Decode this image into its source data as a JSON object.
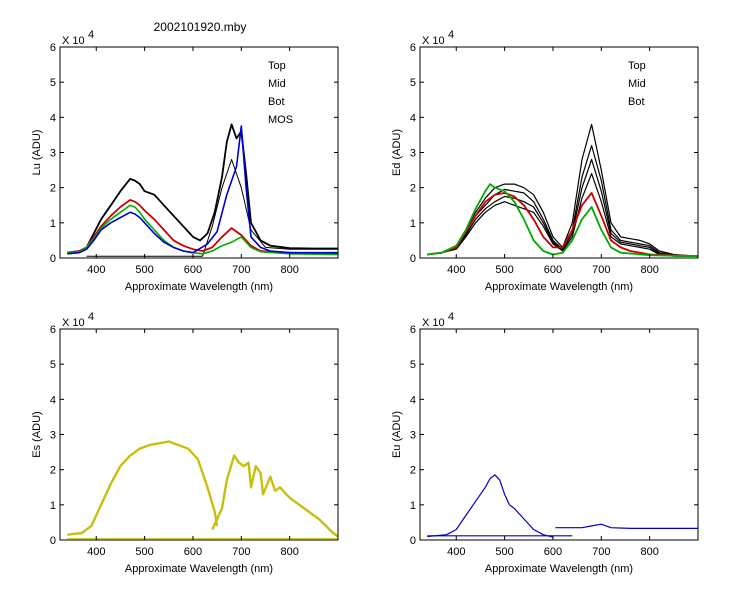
{
  "figure": {
    "title": "2002101920.mby"
  },
  "chart_data": [
    {
      "type": "line",
      "id": "lu",
      "ylabel": "Lu (ADU)",
      "xlabel": "Approximate Wavelength (nm)",
      "multiplier_label": "X 10",
      "multiplier_exp": "4",
      "xlim": [
        325,
        900
      ],
      "ylim": [
        0,
        6
      ],
      "xticks": [
        400,
        500,
        600,
        700,
        800
      ],
      "yticks": [
        0,
        1,
        2,
        3,
        4,
        5,
        6
      ],
      "legend_position": "top-right",
      "legend": [
        {
          "name": "Top",
          "color": "#000000"
        },
        {
          "name": "Mid",
          "color": "#cc0000"
        },
        {
          "name": "Bot",
          "color": "#00aa00"
        },
        {
          "name": "MOS",
          "color": "#0000cc"
        }
      ],
      "series": [
        {
          "name": "Top",
          "color": "#000000",
          "width": 1.8,
          "x": [
            340,
            365,
            380,
            395,
            410,
            430,
            450,
            470,
            480,
            490,
            500,
            520,
            540,
            560,
            580,
            600,
            615,
            630,
            645,
            660,
            670,
            680,
            690,
            700,
            710,
            720,
            740,
            760,
            800,
            850,
            900
          ],
          "y": [
            0.15,
            0.2,
            0.3,
            0.7,
            1.1,
            1.5,
            1.9,
            2.25,
            2.2,
            2.1,
            1.9,
            1.8,
            1.5,
            1.2,
            0.9,
            0.6,
            0.5,
            0.7,
            1.3,
            2.3,
            3.3,
            3.8,
            3.4,
            3.6,
            2.4,
            1.0,
            0.5,
            0.35,
            0.28,
            0.27,
            0.27
          ]
        },
        {
          "name": "Top-low",
          "color": "#000000",
          "width": 1,
          "x": [
            620,
            640,
            660,
            680,
            700,
            720,
            750,
            800,
            900
          ],
          "y": [
            0.05,
            0.9,
            2.0,
            2.8,
            2.0,
            0.8,
            0.3,
            0.25,
            0.25
          ]
        },
        {
          "name": "Mid",
          "color": "#cc0000",
          "width": 1.8,
          "x": [
            340,
            365,
            380,
            395,
            410,
            430,
            450,
            470,
            480,
            490,
            500,
            520,
            540,
            560,
            580,
            600,
            620,
            640,
            660,
            680,
            700,
            720,
            740,
            800,
            900
          ],
          "y": [
            0.15,
            0.2,
            0.3,
            0.6,
            0.9,
            1.2,
            1.45,
            1.65,
            1.6,
            1.5,
            1.35,
            1.1,
            0.8,
            0.5,
            0.35,
            0.25,
            0.2,
            0.3,
            0.6,
            0.85,
            0.65,
            0.35,
            0.2,
            0.15,
            0.12
          ]
        },
        {
          "name": "Bot",
          "color": "#00aa00",
          "width": 1.6,
          "x": [
            340,
            365,
            380,
            395,
            410,
            430,
            450,
            470,
            480,
            490,
            500,
            520,
            540,
            560,
            580,
            600,
            620,
            640,
            660,
            680,
            700,
            720,
            740,
            800,
            900
          ],
          "y": [
            0.15,
            0.18,
            0.3,
            0.55,
            0.85,
            1.1,
            1.3,
            1.5,
            1.45,
            1.3,
            1.1,
            0.8,
            0.5,
            0.3,
            0.2,
            0.15,
            0.12,
            0.2,
            0.35,
            0.45,
            0.6,
            0.3,
            0.18,
            0.12,
            0.1
          ]
        },
        {
          "name": "MOS",
          "color": "#0000cc",
          "width": 1.6,
          "x": [
            340,
            365,
            380,
            395,
            410,
            430,
            450,
            470,
            480,
            490,
            500,
            520,
            540,
            560,
            580,
            600,
            630,
            650,
            670,
            690,
            700,
            710,
            720,
            740,
            760,
            800,
            900
          ],
          "y": [
            0.12,
            0.15,
            0.25,
            0.5,
            0.8,
            1.0,
            1.15,
            1.3,
            1.25,
            1.15,
            1.0,
            0.7,
            0.45,
            0.3,
            0.2,
            0.15,
            0.4,
            0.75,
            1.8,
            2.6,
            3.75,
            2.0,
            0.6,
            0.3,
            0.2,
            0.15,
            0.15
          ]
        },
        {
          "name": "Baseline",
          "color": "#000000",
          "width": 1,
          "x": [
            380,
            620
          ],
          "y": [
            0.05,
            0.05
          ]
        }
      ]
    },
    {
      "type": "line",
      "id": "ed",
      "ylabel": "Ed (ADU)",
      "xlabel": "Approximate Wavelength (nm)",
      "multiplier_label": "X 10",
      "multiplier_exp": "4",
      "xlim": [
        325,
        900
      ],
      "ylim": [
        0,
        6
      ],
      "xticks": [
        400,
        500,
        600,
        700,
        800
      ],
      "yticks": [
        0,
        1,
        2,
        3,
        4,
        5,
        6
      ],
      "legend_position": "top-right",
      "legend": [
        {
          "name": "Top",
          "color": "#000000"
        },
        {
          "name": "Mid",
          "color": "#cc0000"
        },
        {
          "name": "Bot",
          "color": "#00aa00"
        }
      ],
      "series": [
        {
          "name": "Top-1",
          "color": "#000000",
          "width": 1.2,
          "x": [
            340,
            370,
            400,
            420,
            440,
            460,
            480,
            500,
            520,
            540,
            560,
            580,
            600,
            620,
            640,
            660,
            680,
            700,
            720,
            740,
            760,
            780,
            800,
            820,
            850,
            900
          ],
          "y": [
            0.1,
            0.15,
            0.3,
            0.8,
            1.3,
            1.7,
            2.0,
            2.1,
            2.1,
            2.0,
            1.8,
            1.3,
            0.6,
            0.3,
            1.0,
            2.8,
            3.8,
            2.5,
            1.0,
            0.6,
            0.55,
            0.5,
            0.4,
            0.2,
            0.1,
            0.05
          ]
        },
        {
          "name": "Top-2",
          "color": "#000000",
          "width": 1.2,
          "x": [
            340,
            370,
            400,
            420,
            440,
            460,
            480,
            500,
            520,
            540,
            560,
            580,
            600,
            620,
            640,
            660,
            680,
            700,
            720,
            740,
            760,
            780,
            800,
            820,
            850,
            900
          ],
          "y": [
            0.1,
            0.15,
            0.3,
            0.7,
            1.2,
            1.5,
            1.8,
            1.95,
            1.9,
            1.85,
            1.6,
            1.1,
            0.5,
            0.25,
            0.8,
            2.3,
            3.2,
            2.2,
            0.8,
            0.5,
            0.45,
            0.4,
            0.35,
            0.15,
            0.08,
            0.05
          ]
        },
        {
          "name": "Top-3",
          "color": "#000000",
          "width": 1.2,
          "x": [
            340,
            370,
            400,
            420,
            440,
            460,
            480,
            500,
            520,
            540,
            560,
            580,
            600,
            620,
            640,
            660,
            680,
            700,
            720,
            740,
            760,
            780,
            800,
            820,
            850,
            900
          ],
          "y": [
            0.1,
            0.15,
            0.28,
            0.65,
            1.1,
            1.4,
            1.6,
            1.75,
            1.7,
            1.6,
            1.45,
            1.0,
            0.45,
            0.22,
            0.7,
            2.0,
            2.8,
            1.9,
            0.7,
            0.45,
            0.4,
            0.35,
            0.3,
            0.12,
            0.06,
            0.05
          ]
        },
        {
          "name": "Top-4",
          "color": "#000000",
          "width": 1.2,
          "x": [
            340,
            370,
            400,
            420,
            440,
            460,
            480,
            500,
            520,
            540,
            560,
            580,
            600,
            620,
            640,
            660,
            680,
            700,
            720,
            740,
            760,
            780,
            800,
            820,
            850,
            900
          ],
          "y": [
            0.1,
            0.15,
            0.25,
            0.6,
            1.0,
            1.3,
            1.5,
            1.6,
            1.5,
            1.4,
            1.3,
            0.9,
            0.4,
            0.2,
            0.6,
            1.7,
            2.4,
            1.6,
            0.6,
            0.4,
            0.35,
            0.3,
            0.25,
            0.1,
            0.05,
            0.05
          ]
        },
        {
          "name": "Mid",
          "color": "#cc0000",
          "width": 1.8,
          "x": [
            340,
            370,
            400,
            420,
            440,
            460,
            480,
            500,
            520,
            540,
            560,
            580,
            600,
            620,
            640,
            660,
            680,
            700,
            720,
            740,
            760,
            800,
            900
          ],
          "y": [
            0.1,
            0.15,
            0.3,
            0.75,
            1.2,
            1.6,
            1.8,
            1.85,
            1.75,
            1.5,
            1.1,
            0.6,
            0.3,
            0.3,
            0.8,
            1.5,
            1.85,
            1.2,
            0.5,
            0.3,
            0.2,
            0.1,
            0.05
          ]
        },
        {
          "name": "Bot",
          "color": "#00aa00",
          "width": 1.8,
          "x": [
            340,
            370,
            400,
            420,
            440,
            460,
            470,
            480,
            500,
            520,
            540,
            560,
            580,
            600,
            620,
            640,
            660,
            680,
            700,
            720,
            740,
            800,
            900
          ],
          "y": [
            0.1,
            0.15,
            0.35,
            0.8,
            1.4,
            1.9,
            2.1,
            2.0,
            1.9,
            1.6,
            1.1,
            0.5,
            0.2,
            0.1,
            0.15,
            0.5,
            1.1,
            1.45,
            0.8,
            0.3,
            0.15,
            0.08,
            0.05
          ]
        }
      ]
    },
    {
      "type": "line",
      "id": "es",
      "ylabel": "Es (ADU)",
      "xlabel": "Approximate Wavelength (nm)",
      "multiplier_label": "X 10",
      "multiplier_exp": "4",
      "xlim": [
        325,
        900
      ],
      "ylim": [
        0,
        6
      ],
      "xticks": [
        400,
        500,
        600,
        700,
        800
      ],
      "yticks": [
        0,
        1,
        2,
        3,
        4,
        5,
        6
      ],
      "series": [
        {
          "name": "Es",
          "color": "#c8c010",
          "width": 2.4,
          "x": [
            340,
            370,
            390,
            410,
            430,
            450,
            470,
            490,
            510,
            530,
            550,
            570,
            590,
            610,
            630,
            645,
            650
          ],
          "y": [
            0.15,
            0.2,
            0.4,
            1.0,
            1.6,
            2.1,
            2.4,
            2.6,
            2.7,
            2.75,
            2.8,
            2.7,
            2.6,
            2.3,
            1.5,
            0.8,
            0.4
          ]
        },
        {
          "name": "Es-red",
          "color": "#c8c010",
          "width": 2.4,
          "x": [
            640,
            660,
            670,
            685,
            695,
            705,
            715,
            720,
            730,
            740,
            745,
            760,
            770,
            780,
            800,
            830,
            860,
            890,
            900
          ],
          "y": [
            0.3,
            0.9,
            1.7,
            2.4,
            2.2,
            2.1,
            2.2,
            1.5,
            2.1,
            1.9,
            1.3,
            1.8,
            1.4,
            1.5,
            1.2,
            0.9,
            0.6,
            0.2,
            0.1
          ]
        },
        {
          "name": "Es-base",
          "color": "#c8c010",
          "width": 1,
          "x": [
            340,
            900
          ],
          "y": [
            0.04,
            0.04
          ]
        }
      ]
    },
    {
      "type": "line",
      "id": "eu",
      "ylabel": "Eu (ADU)",
      "xlabel": "Approximate Wavelength (nm)",
      "multiplier_label": "X 10",
      "multiplier_exp": "4",
      "xlim": [
        325,
        900
      ],
      "ylim": [
        0,
        6
      ],
      "xticks": [
        400,
        500,
        600,
        700,
        800
      ],
      "yticks": [
        0,
        1,
        2,
        3,
        4,
        5,
        6
      ],
      "series": [
        {
          "name": "Eu",
          "color": "#0000cc",
          "width": 1.2,
          "x": [
            340,
            380,
            400,
            420,
            440,
            460,
            470,
            480,
            490,
            500,
            510,
            520,
            540,
            560,
            580,
            600
          ],
          "y": [
            0.1,
            0.15,
            0.3,
            0.7,
            1.1,
            1.5,
            1.75,
            1.85,
            1.7,
            1.3,
            1.0,
            0.9,
            0.6,
            0.3,
            0.15,
            0.08
          ]
        },
        {
          "name": "Eu-red",
          "color": "#0000cc",
          "width": 1.2,
          "x": [
            605,
            640,
            660,
            680,
            700,
            720,
            760,
            800,
            900
          ],
          "y": [
            0.35,
            0.35,
            0.35,
            0.4,
            0.45,
            0.35,
            0.33,
            0.33,
            0.33
          ]
        },
        {
          "name": "Eu-base",
          "color": "#0000cc",
          "width": 1.2,
          "x": [
            340,
            640
          ],
          "y": [
            0.12,
            0.12
          ]
        }
      ]
    }
  ]
}
